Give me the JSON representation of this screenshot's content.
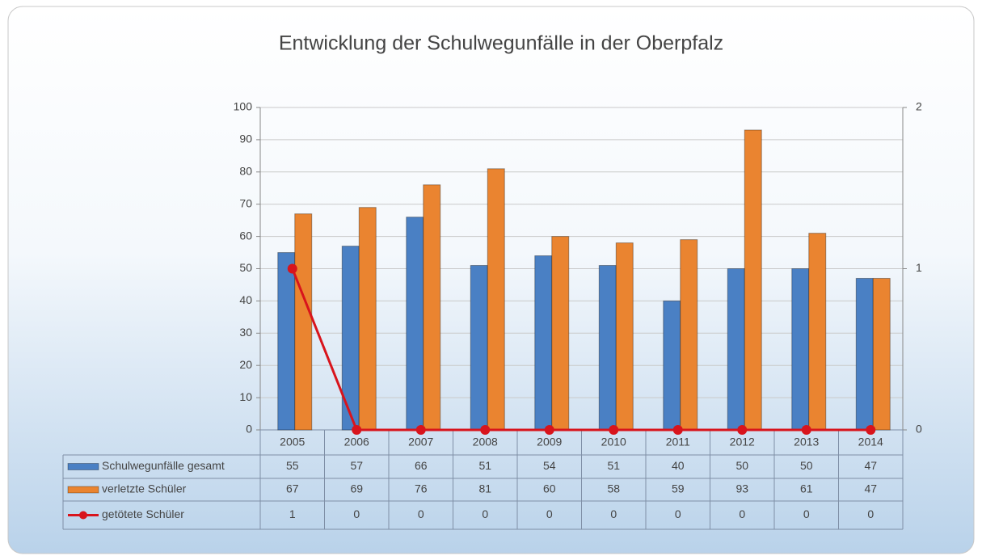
{
  "chart_data": {
    "type": "bar",
    "title": "Entwicklung der Schulwegunfälle in der Oberpfalz",
    "categories": [
      "2005",
      "2006",
      "2007",
      "2008",
      "2009",
      "2010",
      "2011",
      "2012",
      "2013",
      "2014"
    ],
    "series": [
      {
        "name": "Schulwegunfälle gesamt",
        "color": "#4a80c4",
        "type": "bar",
        "values": [
          55,
          57,
          66,
          51,
          54,
          51,
          40,
          50,
          50,
          47
        ]
      },
      {
        "name": "verletzte Schüler",
        "color": "#ea8430",
        "type": "bar",
        "values": [
          67,
          69,
          76,
          81,
          60,
          58,
          59,
          93,
          61,
          47
        ]
      },
      {
        "name": "getötete Schüler",
        "color": "#d8141c",
        "type": "line",
        "axis": "y2",
        "values": [
          1,
          0,
          0,
          0,
          0,
          0,
          0,
          0,
          0,
          0
        ]
      }
    ],
    "ylim": [
      0,
      100
    ],
    "yticks": [
      0,
      10,
      20,
      30,
      40,
      50,
      60,
      70,
      80,
      90,
      100
    ],
    "y2lim": [
      0,
      2
    ],
    "y2ticks": [
      0,
      1,
      2
    ],
    "grid": true
  }
}
